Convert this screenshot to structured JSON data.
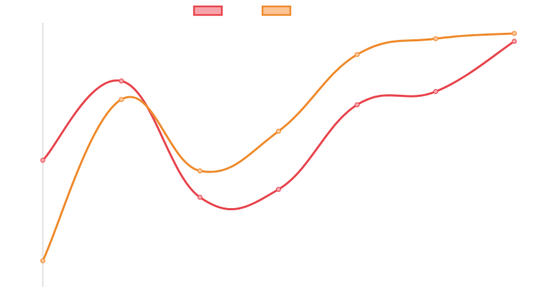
{
  "colors": {
    "series_1_line": "#e8474f",
    "series_1_fill": "#f7a3ab",
    "series_2_line": "#ef8c2f",
    "series_2_fill": "#fcc395",
    "axis": "#c8c8c8"
  },
  "chart_data": {
    "type": "line",
    "title": "",
    "xlabel": "",
    "ylabel": "",
    "x": [
      0,
      1,
      2,
      3,
      4,
      5,
      6
    ],
    "ylim": [
      0,
      100
    ],
    "grid": false,
    "legend_position": "top-center",
    "series": [
      {
        "values": [
          48,
          78,
          34,
          37,
          69,
          74,
          93
        ],
        "color_key": "series_1_line",
        "fill_key": "series_1_fill"
      },
      {
        "values": [
          10,
          71,
          44,
          59,
          88,
          94,
          96
        ],
        "color_key": "series_2_line",
        "fill_key": "series_2_fill"
      }
    ]
  }
}
